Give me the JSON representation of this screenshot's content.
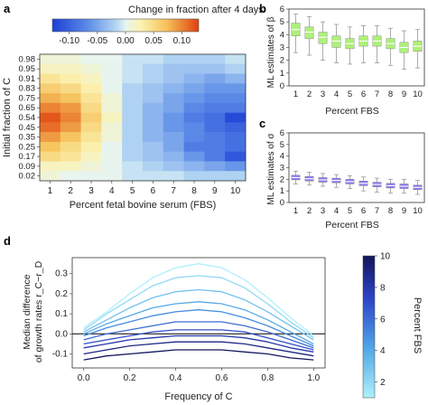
{
  "chart_data": [
    {
      "panel": "a",
      "type": "heatmap",
      "xlabel": "Percent fetal bovine serum (FBS)",
      "ylabel": "Initial fraction of C",
      "x": [
        "1",
        "2",
        "3",
        "4",
        "5",
        "6",
        "7",
        "8",
        "9",
        "10"
      ],
      "y": [
        "0.98",
        "0.95",
        "0.91",
        "0.83",
        "0.75",
        "0.65",
        "0.54",
        "0.45",
        "0.35",
        "0.25",
        "0.17",
        "0.09",
        "0.02"
      ],
      "colorbar": {
        "label": "Change in fraction after 4 days",
        "ticks": [
          "-0.10",
          "-0.05",
          "0.00",
          "0.05",
          "0.10"
        ],
        "range": [
          -0.13,
          0.13
        ]
      },
      "values": [
        [
          0.01,
          0.01,
          0.0,
          0.0,
          -0.01,
          -0.01,
          -0.02,
          -0.02,
          -0.02,
          -0.01
        ],
        [
          0.02,
          0.02,
          0.01,
          0.0,
          -0.01,
          -0.02,
          -0.03,
          -0.03,
          -0.03,
          -0.02
        ],
        [
          0.04,
          0.03,
          0.02,
          0.0,
          -0.01,
          -0.02,
          -0.03,
          -0.04,
          -0.05,
          -0.04
        ],
        [
          0.06,
          0.05,
          0.03,
          0.0,
          -0.02,
          -0.03,
          -0.04,
          -0.05,
          -0.06,
          -0.06
        ],
        [
          0.08,
          0.07,
          0.04,
          0.01,
          -0.02,
          -0.03,
          -0.05,
          -0.06,
          -0.07,
          -0.07
        ],
        [
          0.1,
          0.09,
          0.05,
          0.01,
          -0.02,
          -0.04,
          -0.05,
          -0.07,
          -0.08,
          -0.08
        ],
        [
          0.12,
          0.1,
          0.06,
          0.02,
          -0.02,
          -0.04,
          -0.06,
          -0.08,
          -0.09,
          -0.12
        ],
        [
          0.11,
          0.09,
          0.05,
          0.01,
          -0.02,
          -0.04,
          -0.06,
          -0.07,
          -0.09,
          -0.1
        ],
        [
          0.09,
          0.07,
          0.04,
          0.01,
          -0.02,
          -0.04,
          -0.05,
          -0.07,
          -0.08,
          -0.09
        ],
        [
          0.07,
          0.05,
          0.03,
          0.0,
          -0.02,
          -0.03,
          -0.05,
          -0.08,
          -0.08,
          -0.09
        ],
        [
          0.05,
          0.04,
          0.02,
          0.0,
          -0.02,
          -0.03,
          -0.04,
          -0.06,
          -0.08,
          -0.11
        ],
        [
          0.02,
          0.02,
          0.01,
          0.0,
          -0.01,
          -0.02,
          -0.03,
          -0.04,
          -0.05,
          -0.06
        ],
        [
          0.01,
          0.0,
          0.0,
          0.0,
          -0.01,
          -0.01,
          -0.01,
          -0.02,
          -0.02,
          -0.02
        ]
      ]
    },
    {
      "panel": "b",
      "type": "box",
      "xlabel": "Percent FBS",
      "ylabel": "ML estimates of β",
      "categories": [
        "1",
        "2",
        "3",
        "4",
        "5",
        "6",
        "7",
        "8",
        "9",
        "10"
      ],
      "ylim": [
        0,
        6
      ],
      "yticks": [
        "0",
        "1",
        "2",
        "3",
        "4",
        "5",
        "6"
      ],
      "color": "#aef07a",
      "boxes": [
        {
          "wlo": 2.6,
          "q1": 3.9,
          "med": 4.4,
          "q3": 4.9,
          "whi": 5.6
        },
        {
          "wlo": 2.4,
          "q1": 3.7,
          "med": 4.2,
          "q3": 4.6,
          "whi": 5.4
        },
        {
          "wlo": 2.0,
          "q1": 3.3,
          "med": 3.8,
          "q3": 4.2,
          "whi": 5.0
        },
        {
          "wlo": 1.8,
          "q1": 3.0,
          "med": 3.5,
          "q3": 3.9,
          "whi": 4.8
        },
        {
          "wlo": 1.7,
          "q1": 2.9,
          "med": 3.3,
          "q3": 3.7,
          "whi": 4.6
        },
        {
          "wlo": 1.8,
          "q1": 3.1,
          "med": 3.5,
          "q3": 3.9,
          "whi": 4.7
        },
        {
          "wlo": 1.8,
          "q1": 3.1,
          "med": 3.5,
          "q3": 3.9,
          "whi": 4.7
        },
        {
          "wlo": 1.6,
          "q1": 2.9,
          "med": 3.3,
          "q3": 3.7,
          "whi": 4.5
        },
        {
          "wlo": 1.3,
          "q1": 2.6,
          "med": 3.0,
          "q3": 3.4,
          "whi": 4.3
        },
        {
          "wlo": 1.4,
          "q1": 2.7,
          "med": 3.1,
          "q3": 3.5,
          "whi": 4.4
        }
      ]
    },
    {
      "panel": "c",
      "type": "box",
      "xlabel": "Percent FBS",
      "ylabel": "ML estimates of σ",
      "categories": [
        "1",
        "2",
        "3",
        "4",
        "5",
        "6",
        "7",
        "8",
        "9",
        "10"
      ],
      "ylim": [
        0,
        6
      ],
      "yticks": [
        "0",
        "1",
        "2",
        "3",
        "4",
        "5",
        "6"
      ],
      "color": "#8e79ee",
      "boxes": [
        {
          "wlo": 1.6,
          "q1": 1.95,
          "med": 2.15,
          "q3": 2.35,
          "whi": 2.7
        },
        {
          "wlo": 1.5,
          "q1": 1.85,
          "med": 2.05,
          "q3": 2.25,
          "whi": 2.6
        },
        {
          "wlo": 1.4,
          "q1": 1.75,
          "med": 1.95,
          "q3": 2.15,
          "whi": 2.5
        },
        {
          "wlo": 1.3,
          "q1": 1.7,
          "med": 1.9,
          "q3": 2.1,
          "whi": 2.4
        },
        {
          "wlo": 1.2,
          "q1": 1.6,
          "med": 1.8,
          "q3": 2.0,
          "whi": 2.3
        },
        {
          "wlo": 1.0,
          "q1": 1.45,
          "med": 1.65,
          "q3": 1.85,
          "whi": 2.2
        },
        {
          "wlo": 0.9,
          "q1": 1.35,
          "med": 1.55,
          "q3": 1.75,
          "whi": 2.1
        },
        {
          "wlo": 0.8,
          "q1": 1.25,
          "med": 1.45,
          "q3": 1.65,
          "whi": 2.0
        },
        {
          "wlo": 0.8,
          "q1": 1.2,
          "med": 1.4,
          "q3": 1.6,
          "whi": 2.0
        },
        {
          "wlo": 0.7,
          "q1": 1.1,
          "med": 1.3,
          "q3": 1.5,
          "whi": 1.9
        }
      ]
    },
    {
      "panel": "d",
      "type": "line",
      "xlabel": "Frequency of C",
      "ylabel_line1": "Median difference",
      "ylabel_line2": "of growth rates r_C−r_D",
      "xlim": [
        -0.05,
        1.05
      ],
      "ylim": [
        -0.17,
        0.38
      ],
      "xticks": [
        "0.0",
        "0.2",
        "0.4",
        "0.6",
        "0.8",
        "1.0"
      ],
      "yticks": [
        "-0.1",
        "0.0",
        "0.1",
        "0.2",
        "0.3"
      ],
      "x": [
        0.0,
        0.1,
        0.2,
        0.3,
        0.4,
        0.5,
        0.6,
        0.7,
        0.8,
        0.9,
        1.0
      ],
      "colorbar": {
        "label": "Percent FBS",
        "ticks": [
          "2",
          "4",
          "6",
          "8",
          "10"
        ],
        "range": [
          1,
          10
        ]
      },
      "series": [
        {
          "fbs": 1,
          "values": [
            0.03,
            0.11,
            0.2,
            0.28,
            0.33,
            0.35,
            0.33,
            0.27,
            0.18,
            0.08,
            -0.01
          ]
        },
        {
          "fbs": 2,
          "values": [
            0.02,
            0.1,
            0.17,
            0.24,
            0.28,
            0.29,
            0.28,
            0.23,
            0.15,
            0.06,
            -0.02
          ]
        },
        {
          "fbs": 3,
          "values": [
            0.01,
            0.07,
            0.13,
            0.18,
            0.21,
            0.22,
            0.21,
            0.17,
            0.11,
            0.04,
            -0.03
          ]
        },
        {
          "fbs": 4,
          "values": [
            0.0,
            0.05,
            0.09,
            0.13,
            0.15,
            0.16,
            0.15,
            0.12,
            0.07,
            0.01,
            -0.05
          ]
        },
        {
          "fbs": 5,
          "values": [
            -0.01,
            0.03,
            0.06,
            0.09,
            0.11,
            0.12,
            0.11,
            0.08,
            0.04,
            -0.01,
            -0.06
          ]
        },
        {
          "fbs": 6,
          "values": [
            -0.03,
            0.0,
            0.02,
            0.04,
            0.06,
            0.06,
            0.06,
            0.04,
            0.01,
            -0.03,
            -0.07
          ]
        },
        {
          "fbs": 7,
          "values": [
            -0.05,
            -0.03,
            -0.01,
            0.01,
            0.02,
            0.02,
            0.02,
            0.01,
            -0.02,
            -0.05,
            -0.08
          ]
        },
        {
          "fbs": 8,
          "values": [
            -0.07,
            -0.05,
            -0.03,
            -0.02,
            -0.01,
            -0.01,
            -0.01,
            -0.02,
            -0.04,
            -0.07,
            -0.09
          ]
        },
        {
          "fbs": 9,
          "values": [
            -0.1,
            -0.08,
            -0.06,
            -0.05,
            -0.04,
            -0.04,
            -0.04,
            -0.05,
            -0.07,
            -0.09,
            -0.11
          ]
        },
        {
          "fbs": 10,
          "values": [
            -0.13,
            -0.11,
            -0.1,
            -0.09,
            -0.08,
            -0.08,
            -0.08,
            -0.09,
            -0.1,
            -0.12,
            -0.13
          ]
        }
      ]
    }
  ]
}
